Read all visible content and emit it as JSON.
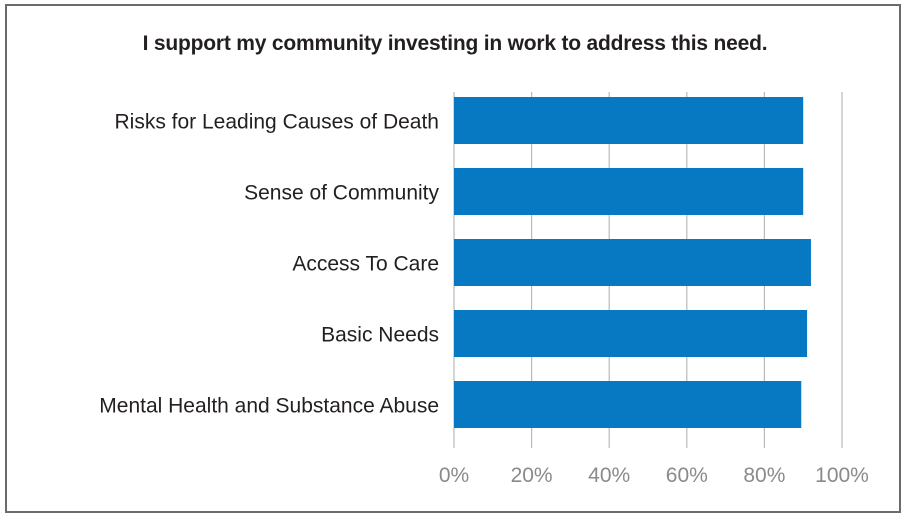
{
  "chart_data": {
    "type": "bar",
    "orientation": "horizontal",
    "title": "I support my community investing in work to address this need.",
    "xlabel": "",
    "ylabel": "",
    "categories": [
      "Risks for Leading Causes of Death",
      "Sense of Community",
      "Access To Care",
      "Basic Needs",
      "Mental Health and Substance Abuse"
    ],
    "values": [
      90,
      90,
      92,
      91,
      89.5
    ],
    "unit": "%",
    "xlim": [
      0,
      100
    ],
    "ticks": [
      "0%",
      "20%",
      "40%",
      "60%",
      "80%",
      "100%"
    ],
    "grid": true,
    "legend": "none",
    "colors": {
      "bar": "#0779c2",
      "separator": "#2a8fd4",
      "grid": "#b9b9b9",
      "border": "#6b6b6b",
      "tick_text": "#8a8a8a",
      "label_text": "#231f20"
    }
  }
}
